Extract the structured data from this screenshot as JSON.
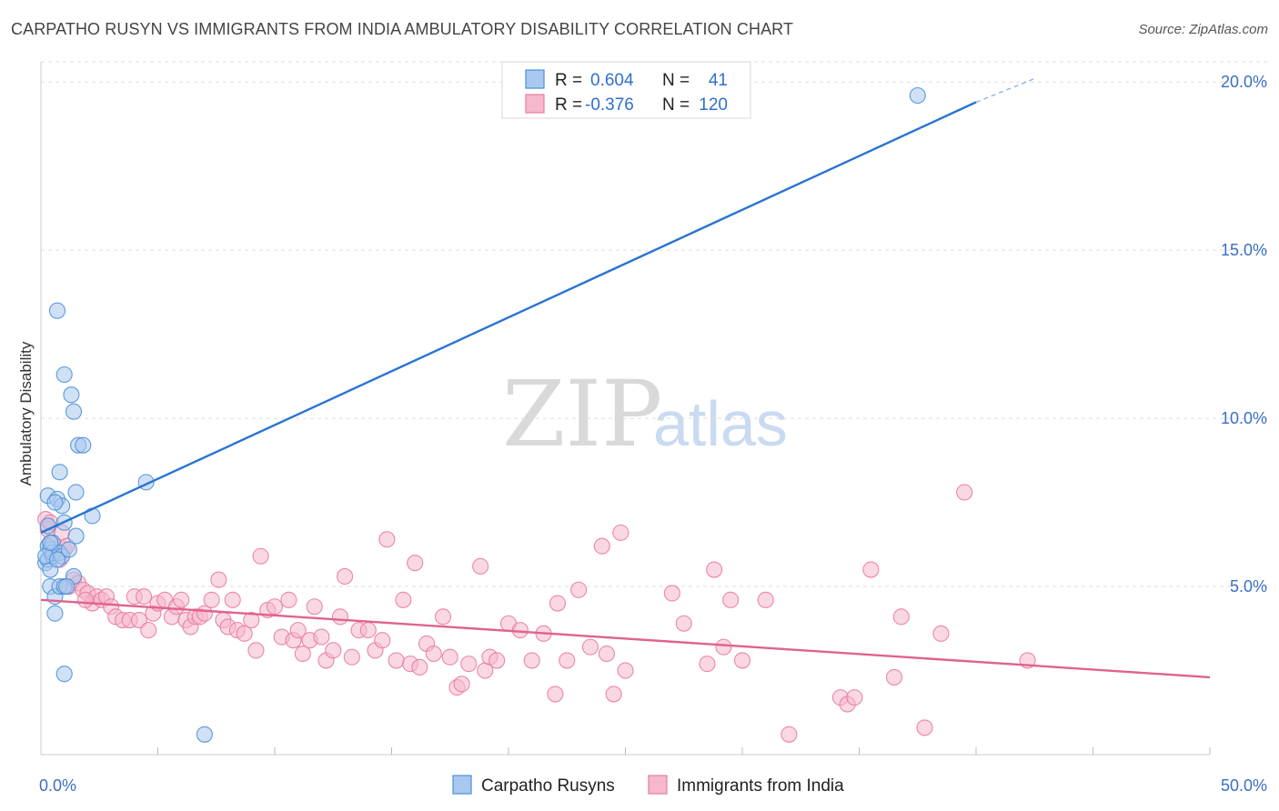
{
  "title": "CARPATHO RUSYN VS IMMIGRANTS FROM INDIA AMBULATORY DISABILITY CORRELATION CHART",
  "source": "Source: ZipAtlas.com",
  "watermark": {
    "zip": "ZIP",
    "atlas": "atlas"
  },
  "colors": {
    "blue": "#4a90d9",
    "blue_fill": "#a9c8ef",
    "blue_line": "#2a74d0",
    "pink": "#e87ba0",
    "pink_fill": "#f5b8cc",
    "pink_line": "#e0628f",
    "grid": "#dddddd",
    "tick_label": "#3a6fc4"
  },
  "legend": {
    "rows": [
      {
        "r_label": "R =",
        "r_value": "0.604",
        "n_label": "N =",
        "n_value": "41",
        "color": "blue"
      },
      {
        "r_label": "R =",
        "r_value": "-0.376",
        "n_label": "N =",
        "n_value": "120",
        "color": "pink"
      }
    ]
  },
  "bottom_legend": [
    {
      "label": "Carpatho Rusyns",
      "color": "blue"
    },
    {
      "label": "Immigrants from India",
      "color": "pink"
    }
  ],
  "chart_data": {
    "type": "scatter",
    "xlabel": "",
    "ylabel": "Ambulatory Disability",
    "xlim": [
      0,
      50
    ],
    "ylim": [
      0,
      20.6
    ],
    "x_tick_labels": [
      "0.0%",
      "50.0%"
    ],
    "y_ticks": [
      5,
      10,
      15,
      20
    ],
    "y_tick_labels": [
      "5.0%",
      "10.0%",
      "15.0%",
      "20.0%"
    ],
    "grid": true,
    "legend_position": "top-center",
    "series": [
      {
        "name": "Carpatho Rusyns",
        "color": "blue",
        "points": [
          [
            0.2,
            5.7
          ],
          [
            0.3,
            6.2
          ],
          [
            0.3,
            5.8
          ],
          [
            0.3,
            7.7
          ],
          [
            0.3,
            6.8
          ],
          [
            0.4,
            6.1
          ],
          [
            0.4,
            5.5
          ],
          [
            0.4,
            5.0
          ],
          [
            0.5,
            5.9
          ],
          [
            0.5,
            6.0
          ],
          [
            0.5,
            6.3
          ],
          [
            0.6,
            4.7
          ],
          [
            0.6,
            4.2
          ],
          [
            0.7,
            13.2
          ],
          [
            0.7,
            7.6
          ],
          [
            0.8,
            6.0
          ],
          [
            0.8,
            5.0
          ],
          [
            0.8,
            8.4
          ],
          [
            0.9,
            7.4
          ],
          [
            0.9,
            5.9
          ],
          [
            1.0,
            11.3
          ],
          [
            1.0,
            6.9
          ],
          [
            1.0,
            5.0
          ],
          [
            1.0,
            2.4
          ],
          [
            1.2,
            6.1
          ],
          [
            1.3,
            10.7
          ],
          [
            1.4,
            10.2
          ],
          [
            1.4,
            5.3
          ],
          [
            1.5,
            6.5
          ],
          [
            1.5,
            7.8
          ],
          [
            1.6,
            9.2
          ],
          [
            1.8,
            9.2
          ],
          [
            2.2,
            7.1
          ],
          [
            4.5,
            8.1
          ],
          [
            7.0,
            0.6
          ],
          [
            37.5,
            19.6
          ],
          [
            0.6,
            7.5
          ],
          [
            0.2,
            5.9
          ],
          [
            0.4,
            6.3
          ],
          [
            1.1,
            5.0
          ],
          [
            0.7,
            5.8
          ]
        ],
        "trend": {
          "x": [
            0,
            40
          ],
          "y": [
            6.6,
            19.4
          ],
          "dashed_to": [
            42.5,
            20.1
          ]
        }
      },
      {
        "name": "Immigrants from India",
        "color": "pink",
        "points": [
          [
            0.2,
            7.0
          ],
          [
            0.3,
            6.7
          ],
          [
            0.4,
            6.3
          ],
          [
            0.5,
            6.0
          ],
          [
            0.6,
            6.1
          ],
          [
            0.8,
            5.8
          ],
          [
            0.9,
            6.6
          ],
          [
            1.0,
            6.1
          ],
          [
            1.1,
            6.2
          ],
          [
            1.2,
            5.0
          ],
          [
            1.4,
            5.2
          ],
          [
            1.6,
            5.1
          ],
          [
            1.8,
            4.9
          ],
          [
            2.0,
            4.8
          ],
          [
            2.2,
            4.5
          ],
          [
            2.4,
            4.7
          ],
          [
            2.6,
            4.6
          ],
          [
            2.8,
            4.7
          ],
          [
            3.0,
            4.4
          ],
          [
            3.2,
            4.1
          ],
          [
            3.5,
            4.0
          ],
          [
            3.8,
            4.0
          ],
          [
            4.0,
            4.7
          ],
          [
            4.2,
            4.0
          ],
          [
            4.4,
            4.7
          ],
          [
            4.6,
            3.7
          ],
          [
            4.8,
            4.2
          ],
          [
            5.0,
            4.5
          ],
          [
            5.3,
            4.6
          ],
          [
            5.6,
            4.1
          ],
          [
            5.8,
            4.4
          ],
          [
            6.0,
            4.6
          ],
          [
            6.2,
            4.0
          ],
          [
            6.4,
            3.8
          ],
          [
            6.6,
            4.1
          ],
          [
            6.8,
            4.1
          ],
          [
            7.0,
            4.2
          ],
          [
            7.3,
            4.6
          ],
          [
            7.6,
            5.2
          ],
          [
            7.8,
            4.0
          ],
          [
            8.0,
            3.8
          ],
          [
            8.2,
            4.6
          ],
          [
            8.4,
            3.7
          ],
          [
            8.7,
            3.6
          ],
          [
            9.0,
            4.0
          ],
          [
            9.2,
            3.1
          ],
          [
            9.4,
            5.9
          ],
          [
            9.7,
            4.3
          ],
          [
            10.0,
            4.4
          ],
          [
            10.3,
            3.5
          ],
          [
            10.6,
            4.6
          ],
          [
            10.8,
            3.4
          ],
          [
            11.0,
            3.7
          ],
          [
            11.2,
            3.0
          ],
          [
            11.5,
            3.4
          ],
          [
            11.7,
            4.4
          ],
          [
            12.0,
            3.5
          ],
          [
            12.2,
            2.8
          ],
          [
            12.5,
            3.1
          ],
          [
            12.8,
            4.1
          ],
          [
            13.0,
            5.3
          ],
          [
            13.3,
            2.9
          ],
          [
            13.6,
            3.7
          ],
          [
            14.0,
            3.7
          ],
          [
            14.3,
            3.1
          ],
          [
            14.6,
            3.4
          ],
          [
            14.8,
            6.4
          ],
          [
            15.2,
            2.8
          ],
          [
            15.5,
            4.6
          ],
          [
            15.8,
            2.7
          ],
          [
            16.0,
            5.7
          ],
          [
            16.2,
            2.6
          ],
          [
            16.5,
            3.3
          ],
          [
            16.8,
            3.0
          ],
          [
            17.2,
            4.1
          ],
          [
            17.5,
            2.9
          ],
          [
            17.8,
            2.0
          ],
          [
            18.0,
            2.1
          ],
          [
            18.3,
            2.7
          ],
          [
            18.8,
            5.6
          ],
          [
            19.0,
            2.5
          ],
          [
            19.2,
            2.9
          ],
          [
            19.5,
            2.8
          ],
          [
            20.0,
            3.9
          ],
          [
            20.5,
            3.7
          ],
          [
            21.0,
            2.8
          ],
          [
            21.5,
            3.6
          ],
          [
            22.0,
            1.8
          ],
          [
            22.1,
            4.5
          ],
          [
            22.5,
            2.8
          ],
          [
            23.0,
            4.9
          ],
          [
            23.5,
            3.2
          ],
          [
            24.0,
            6.2
          ],
          [
            24.2,
            3.0
          ],
          [
            24.5,
            1.8
          ],
          [
            25.0,
            2.5
          ],
          [
            24.8,
            6.6
          ],
          [
            27.0,
            4.8
          ],
          [
            27.5,
            3.9
          ],
          [
            28.5,
            2.7
          ],
          [
            28.8,
            5.5
          ],
          [
            29.2,
            3.2
          ],
          [
            29.5,
            4.6
          ],
          [
            30.0,
            2.8
          ],
          [
            31.0,
            4.6
          ],
          [
            32.0,
            0.6
          ],
          [
            34.2,
            1.7
          ],
          [
            34.5,
            1.5
          ],
          [
            34.8,
            1.7
          ],
          [
            35.5,
            5.5
          ],
          [
            36.5,
            2.3
          ],
          [
            36.8,
            4.1
          ],
          [
            37.8,
            0.8
          ],
          [
            38.5,
            3.6
          ],
          [
            39.5,
            7.8
          ],
          [
            42.2,
            2.8
          ],
          [
            0.4,
            6.9
          ],
          [
            1.9,
            4.6
          ]
        ],
        "trend": {
          "x": [
            0,
            50
          ],
          "y": [
            4.6,
            2.3
          ]
        }
      }
    ]
  }
}
